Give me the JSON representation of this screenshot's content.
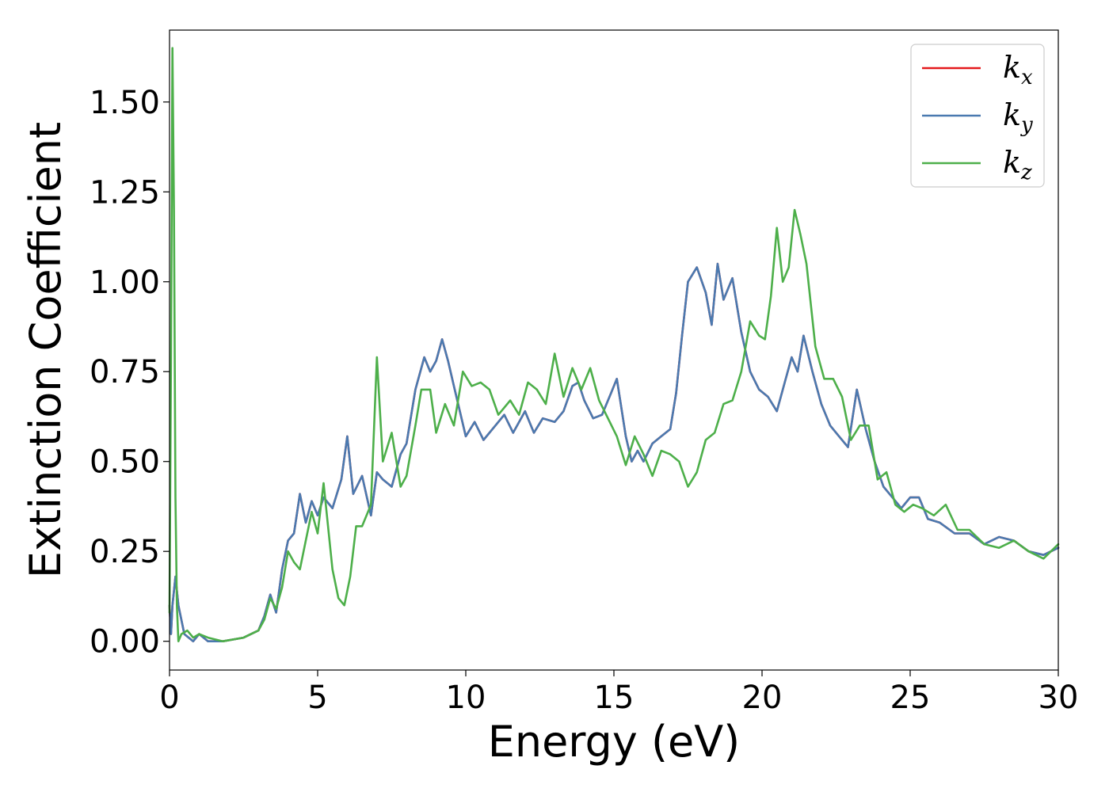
{
  "chart_data": {
    "type": "line",
    "xlabel": "Energy (eV)",
    "ylabel": "Extinction Coefficient",
    "xlim": [
      0,
      30
    ],
    "ylim": [
      -0.08,
      1.7
    ],
    "xticks": [
      0,
      5,
      10,
      15,
      20,
      25,
      30
    ],
    "xtick_labels": [
      "0",
      "5",
      "10",
      "15",
      "20",
      "25",
      "30"
    ],
    "yticks": [
      0.0,
      0.25,
      0.5,
      0.75,
      1.0,
      1.25,
      1.5
    ],
    "ytick_labels": [
      "0.00",
      "0.25",
      "0.50",
      "0.75",
      "1.00",
      "1.25",
      "1.50"
    ],
    "grid": false,
    "legend_position": "top-right",
    "series": [
      {
        "name": "k_x",
        "legend_base": "k",
        "legend_sub": "x",
        "color": "#e41a1c",
        "x": [
          0.0,
          0.05,
          0.1,
          0.2,
          0.3,
          0.5,
          0.8,
          1.0,
          1.3,
          1.8,
          2.5,
          3.0,
          3.2,
          3.4,
          3.6,
          3.8,
          4.0,
          4.2,
          4.4,
          4.6,
          4.8,
          5.0,
          5.2,
          5.5,
          5.8,
          6.0,
          6.2,
          6.5,
          6.8,
          7.0,
          7.2,
          7.5,
          7.8,
          8.0,
          8.3,
          8.6,
          8.8,
          9.0,
          9.2,
          9.4,
          9.6,
          9.8,
          10.0,
          10.3,
          10.6,
          11.0,
          11.3,
          11.6,
          12.0,
          12.3,
          12.6,
          13.0,
          13.3,
          13.6,
          13.8,
          14.0,
          14.3,
          14.6,
          14.9,
          15.1,
          15.4,
          15.6,
          15.8,
          16.0,
          16.3,
          16.6,
          16.9,
          17.1,
          17.3,
          17.5,
          17.8,
          18.1,
          18.3,
          18.5,
          18.7,
          19.0,
          19.3,
          19.6,
          19.9,
          20.2,
          20.5,
          20.8,
          21.0,
          21.2,
          21.4,
          21.7,
          22.0,
          22.3,
          22.6,
          22.9,
          23.2,
          23.5,
          23.8,
          24.1,
          24.4,
          24.7,
          25.0,
          25.3,
          25.6,
          26.0,
          26.5,
          27.0,
          27.5,
          28.0,
          28.5,
          29.0,
          29.5,
          30.0
        ],
        "y": [
          0.1,
          0.02,
          0.1,
          0.18,
          0.1,
          0.02,
          0.0,
          0.02,
          0.0,
          0.0,
          0.01,
          0.03,
          0.07,
          0.13,
          0.08,
          0.2,
          0.28,
          0.3,
          0.41,
          0.33,
          0.39,
          0.35,
          0.4,
          0.37,
          0.45,
          0.57,
          0.41,
          0.46,
          0.35,
          0.47,
          0.45,
          0.43,
          0.52,
          0.55,
          0.7,
          0.79,
          0.75,
          0.78,
          0.84,
          0.78,
          0.71,
          0.64,
          0.57,
          0.61,
          0.56,
          0.6,
          0.63,
          0.58,
          0.64,
          0.58,
          0.62,
          0.61,
          0.64,
          0.71,
          0.72,
          0.67,
          0.62,
          0.63,
          0.69,
          0.73,
          0.57,
          0.5,
          0.53,
          0.5,
          0.55,
          0.57,
          0.59,
          0.69,
          0.85,
          1.0,
          1.04,
          0.97,
          0.88,
          1.05,
          0.95,
          1.01,
          0.86,
          0.75,
          0.7,
          0.68,
          0.64,
          0.73,
          0.79,
          0.75,
          0.85,
          0.75,
          0.66,
          0.6,
          0.57,
          0.54,
          0.7,
          0.59,
          0.5,
          0.43,
          0.4,
          0.37,
          0.4,
          0.4,
          0.34,
          0.33,
          0.3,
          0.3,
          0.27,
          0.29,
          0.28,
          0.25,
          0.24,
          0.26
        ]
      },
      {
        "name": "k_y",
        "legend_base": "k",
        "legend_sub": "y",
        "color": "#4a7ab0",
        "x": [
          0.0,
          0.05,
          0.1,
          0.2,
          0.3,
          0.5,
          0.8,
          1.0,
          1.3,
          1.8,
          2.5,
          3.0,
          3.2,
          3.4,
          3.6,
          3.8,
          4.0,
          4.2,
          4.4,
          4.6,
          4.8,
          5.0,
          5.2,
          5.5,
          5.8,
          6.0,
          6.2,
          6.5,
          6.8,
          7.0,
          7.2,
          7.5,
          7.8,
          8.0,
          8.3,
          8.6,
          8.8,
          9.0,
          9.2,
          9.4,
          9.6,
          9.8,
          10.0,
          10.3,
          10.6,
          11.0,
          11.3,
          11.6,
          12.0,
          12.3,
          12.6,
          13.0,
          13.3,
          13.6,
          13.8,
          14.0,
          14.3,
          14.6,
          14.9,
          15.1,
          15.4,
          15.6,
          15.8,
          16.0,
          16.3,
          16.6,
          16.9,
          17.1,
          17.3,
          17.5,
          17.8,
          18.1,
          18.3,
          18.5,
          18.7,
          19.0,
          19.3,
          19.6,
          19.9,
          20.2,
          20.5,
          20.8,
          21.0,
          21.2,
          21.4,
          21.7,
          22.0,
          22.3,
          22.6,
          22.9,
          23.2,
          23.5,
          23.8,
          24.1,
          24.4,
          24.7,
          25.0,
          25.3,
          25.6,
          26.0,
          26.5,
          27.0,
          27.5,
          28.0,
          28.5,
          29.0,
          29.5,
          30.0
        ],
        "y": [
          0.1,
          0.02,
          0.1,
          0.18,
          0.1,
          0.02,
          0.0,
          0.02,
          0.0,
          0.0,
          0.01,
          0.03,
          0.07,
          0.13,
          0.08,
          0.2,
          0.28,
          0.3,
          0.41,
          0.33,
          0.39,
          0.35,
          0.4,
          0.37,
          0.45,
          0.57,
          0.41,
          0.46,
          0.35,
          0.47,
          0.45,
          0.43,
          0.52,
          0.55,
          0.7,
          0.79,
          0.75,
          0.78,
          0.84,
          0.78,
          0.71,
          0.64,
          0.57,
          0.61,
          0.56,
          0.6,
          0.63,
          0.58,
          0.64,
          0.58,
          0.62,
          0.61,
          0.64,
          0.71,
          0.72,
          0.67,
          0.62,
          0.63,
          0.69,
          0.73,
          0.57,
          0.5,
          0.53,
          0.5,
          0.55,
          0.57,
          0.59,
          0.69,
          0.85,
          1.0,
          1.04,
          0.97,
          0.88,
          1.05,
          0.95,
          1.01,
          0.86,
          0.75,
          0.7,
          0.68,
          0.64,
          0.73,
          0.79,
          0.75,
          0.85,
          0.75,
          0.66,
          0.6,
          0.57,
          0.54,
          0.7,
          0.59,
          0.5,
          0.43,
          0.4,
          0.37,
          0.4,
          0.4,
          0.34,
          0.33,
          0.3,
          0.3,
          0.27,
          0.29,
          0.28,
          0.25,
          0.24,
          0.26
        ]
      },
      {
        "name": "k_z",
        "legend_base": "k",
        "legend_sub": "z",
        "color": "#4daf4a",
        "x": [
          0.0,
          0.05,
          0.1,
          0.15,
          0.2,
          0.25,
          0.3,
          0.4,
          0.6,
          0.8,
          1.0,
          1.3,
          1.8,
          2.5,
          3.0,
          3.2,
          3.4,
          3.6,
          3.8,
          4.0,
          4.2,
          4.4,
          4.6,
          4.8,
          5.0,
          5.2,
          5.5,
          5.7,
          5.9,
          6.1,
          6.3,
          6.5,
          6.8,
          7.0,
          7.2,
          7.5,
          7.8,
          8.0,
          8.3,
          8.5,
          8.8,
          9.0,
          9.3,
          9.6,
          9.9,
          10.2,
          10.5,
          10.8,
          11.1,
          11.5,
          11.8,
          12.1,
          12.4,
          12.7,
          13.0,
          13.3,
          13.6,
          13.9,
          14.2,
          14.5,
          14.8,
          15.1,
          15.4,
          15.7,
          16.0,
          16.3,
          16.6,
          16.9,
          17.2,
          17.5,
          17.8,
          18.1,
          18.4,
          18.7,
          19.0,
          19.3,
          19.6,
          19.9,
          20.1,
          20.3,
          20.5,
          20.7,
          20.9,
          21.1,
          21.3,
          21.5,
          21.8,
          22.1,
          22.4,
          22.7,
          23.0,
          23.3,
          23.6,
          23.9,
          24.2,
          24.5,
          24.8,
          25.1,
          25.4,
          25.8,
          26.2,
          26.6,
          27.0,
          27.5,
          28.0,
          28.5,
          29.0,
          29.5,
          30.0
        ],
        "y": [
          0.08,
          0.8,
          1.65,
          1.2,
          0.4,
          0.1,
          0.0,
          0.02,
          0.03,
          0.01,
          0.02,
          0.01,
          0.0,
          0.01,
          0.03,
          0.06,
          0.12,
          0.09,
          0.15,
          0.25,
          0.22,
          0.2,
          0.28,
          0.36,
          0.3,
          0.44,
          0.2,
          0.12,
          0.1,
          0.18,
          0.32,
          0.32,
          0.38,
          0.79,
          0.5,
          0.58,
          0.43,
          0.46,
          0.6,
          0.7,
          0.7,
          0.58,
          0.66,
          0.6,
          0.75,
          0.71,
          0.72,
          0.7,
          0.63,
          0.67,
          0.63,
          0.72,
          0.7,
          0.66,
          0.8,
          0.68,
          0.76,
          0.7,
          0.76,
          0.67,
          0.62,
          0.57,
          0.49,
          0.57,
          0.52,
          0.46,
          0.53,
          0.52,
          0.5,
          0.43,
          0.47,
          0.56,
          0.58,
          0.66,
          0.67,
          0.75,
          0.89,
          0.85,
          0.84,
          0.96,
          1.15,
          1.0,
          1.04,
          1.2,
          1.13,
          1.05,
          0.82,
          0.73,
          0.73,
          0.68,
          0.56,
          0.6,
          0.6,
          0.45,
          0.47,
          0.38,
          0.36,
          0.38,
          0.37,
          0.35,
          0.38,
          0.31,
          0.31,
          0.27,
          0.26,
          0.28,
          0.25,
          0.23,
          0.27
        ]
      }
    ]
  }
}
